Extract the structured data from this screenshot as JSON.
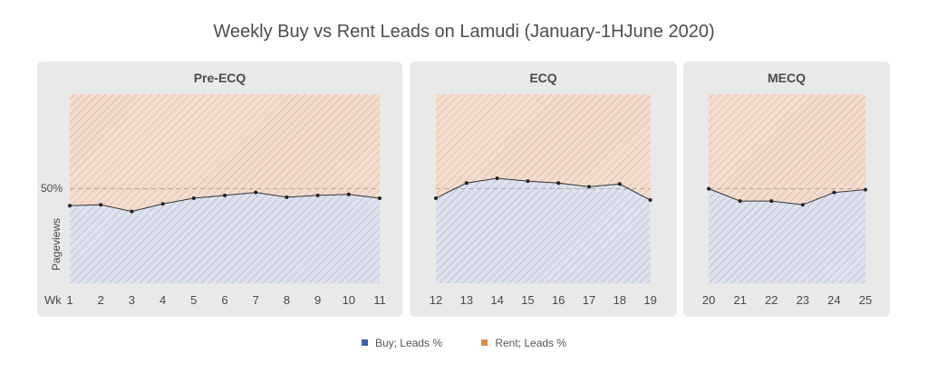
{
  "chart_data": {
    "type": "area",
    "title": "Weekly Buy vs Rent Leads on Lamudi (January-1HJune 2020)",
    "ylabel": "Pageviews",
    "y_reference_label": "50%",
    "x_prefix_label": "Wk",
    "ylim": [
      0,
      100
    ],
    "reference_line": 50,
    "series_names": [
      "Buy; Leads %",
      "Rent; Leads %"
    ],
    "colors": {
      "buy": "#3b5fa3",
      "rent": "#e0884e",
      "buy_fill": "#dfe2ee",
      "rent_fill": "#f2ddd0",
      "panel": "#e9e9e9"
    },
    "panels": [
      {
        "name": "Pre-ECQ",
        "weeks": [
          "1",
          "2",
          "3",
          "4",
          "5",
          "6",
          "7",
          "8",
          "9",
          "10",
          "11"
        ],
        "buy": [
          41,
          41.5,
          38,
          42,
          45,
          46.5,
          48,
          45.5,
          46.5,
          47,
          45
        ]
      },
      {
        "name": "ECQ",
        "weeks": [
          "12",
          "13",
          "14",
          "15",
          "16",
          "17",
          "18",
          "19"
        ],
        "buy": [
          45,
          53,
          55.5,
          54,
          53,
          51,
          52.5,
          44
        ]
      },
      {
        "name": "MECQ",
        "weeks": [
          "20",
          "21",
          "22",
          "23",
          "24",
          "25"
        ],
        "buy": [
          50,
          43.5,
          43.5,
          41.5,
          48,
          49.5
        ]
      }
    ]
  }
}
